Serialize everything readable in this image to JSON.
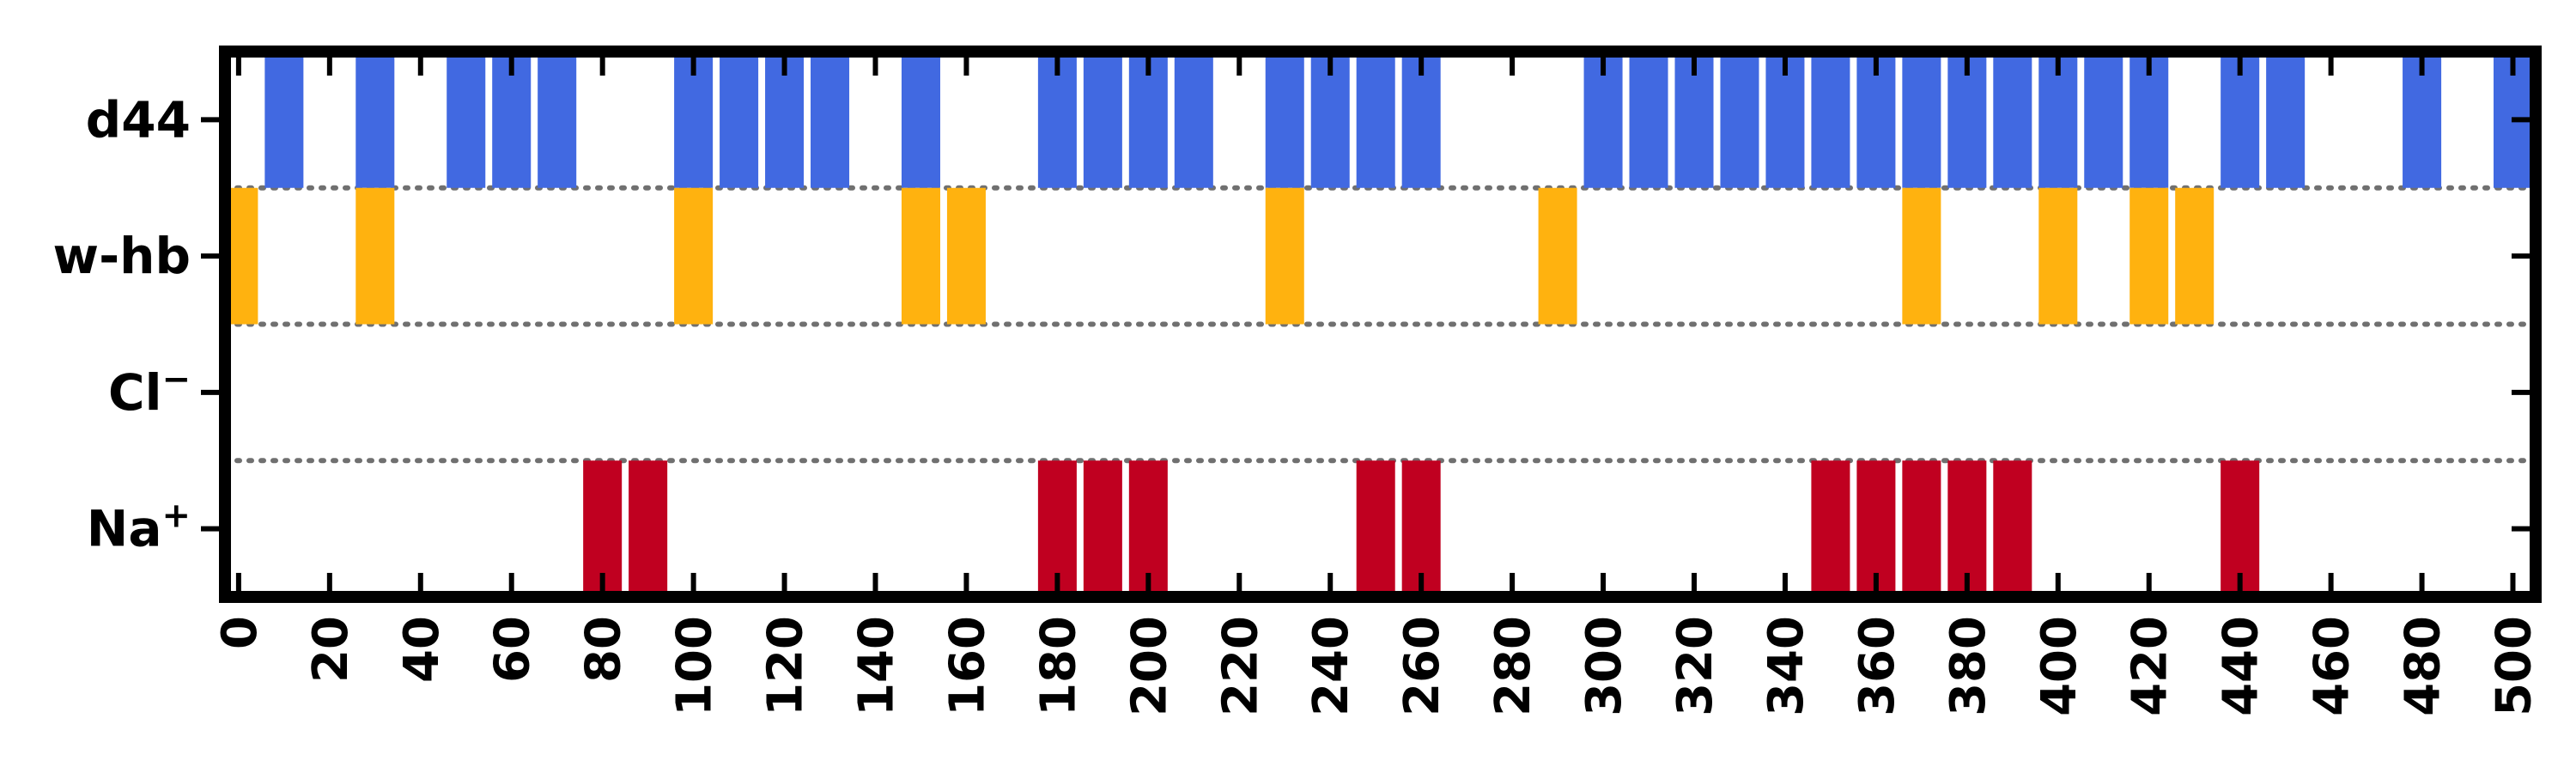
{
  "chart_data": {
    "type": "bar",
    "title": "",
    "xlabel": "",
    "ylabel": "",
    "xlim": [
      -3,
      505
    ],
    "grid": false,
    "rows": [
      {
        "label": "d44",
        "superscript": "",
        "color": "#4169E1",
        "x": [
          10,
          30,
          50,
          60,
          70,
          100,
          110,
          120,
          130,
          150,
          180,
          190,
          200,
          210,
          230,
          240,
          250,
          260,
          300,
          310,
          320,
          330,
          340,
          350,
          360,
          370,
          380,
          390,
          400,
          410,
          420,
          440,
          450,
          480,
          500
        ]
      },
      {
        "label": "w-hb",
        "superscript": "",
        "color": "#FFB20F",
        "x": [
          0,
          30,
          100,
          150,
          160,
          230,
          290,
          370,
          400,
          420,
          430
        ]
      },
      {
        "label": "Cl",
        "superscript": "−",
        "color": "#C00020",
        "x": []
      },
      {
        "label": "Na",
        "superscript": "+",
        "color": "#C00020",
        "x": [
          80,
          90,
          180,
          190,
          200,
          250,
          260,
          350,
          360,
          370,
          380,
          390,
          440
        ]
      }
    ],
    "bar_width": 8.5,
    "xticks": [
      0,
      20,
      40,
      60,
      80,
      100,
      120,
      140,
      160,
      180,
      200,
      220,
      240,
      260,
      280,
      300,
      320,
      340,
      360,
      380,
      400,
      420,
      440,
      460,
      480,
      500
    ]
  }
}
